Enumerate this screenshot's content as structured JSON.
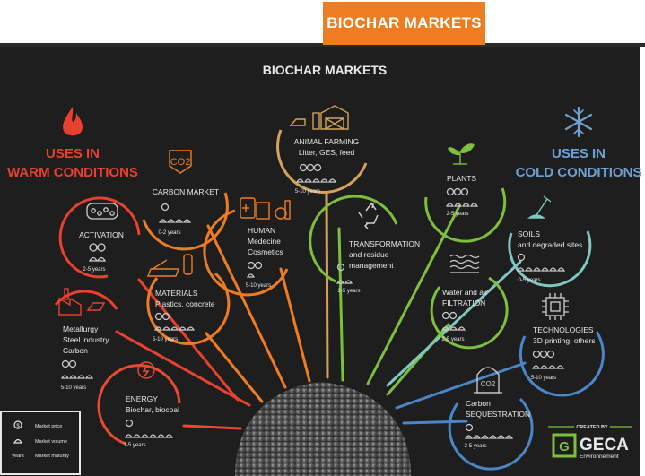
{
  "banner": {
    "title": "BIOCHAR MARKETS"
  },
  "diagram": {
    "title": "BIOCHAR MARKETS"
  },
  "warm": {
    "line1": "USES IN",
    "line2": "WARM CONDITIONS"
  },
  "cold": {
    "line1": "USES IN",
    "line2": "COLD CONDITIONS"
  },
  "colors": {
    "warm": "#e8412f",
    "cold": "#6fa0d4",
    "orange": "#ee7d22",
    "red": "#e84a33",
    "tan": "#d3a35d",
    "green": "#7fbf3e",
    "teal": "#7fc7c0",
    "blue": "#4a86c8",
    "background": "#1e1e1e"
  },
  "markets": {
    "activation": {
      "name": "ACTIVATION",
      "maturity": "2-5 years",
      "icon": "activation-pellets-icon"
    },
    "carbon_market": {
      "name": "CARBON MARKET",
      "maturity": "0-2 years",
      "icon": "co2-icon",
      "icon_label": "CO2"
    },
    "animal_farming": {
      "l1": "ANIMAL FARMING",
      "l2": "Litter, GES, feed",
      "maturity": "5-10 years",
      "icon": "farm-icon"
    },
    "human": {
      "l1": "HUMAN",
      "l2": "Medecine",
      "l3": "Cosmetics",
      "maturity": "5-10 years",
      "icon": "medicine-icon"
    },
    "materials": {
      "l1": "MATERIALS",
      "l2": "Plastics, concrete",
      "maturity": "5-10 years",
      "icon": "construction-icon"
    },
    "metallurgy": {
      "l1": "Metallurgy",
      "l2": "Steel industry",
      "l3": "Carbon",
      "maturity": "5-10 years",
      "icon": "factory-icon"
    },
    "energy": {
      "l1": "ENERGY",
      "l2": "Biochar, biocoal",
      "maturity": "1-5 years",
      "icon": "energy-icon"
    },
    "transformation": {
      "l1": "TRANSFORMATION",
      "l2": "and residue",
      "l3": "management",
      "maturity": "2-5 years",
      "icon": "recycle-icon"
    },
    "plants": {
      "name": "PLANTS",
      "maturity": "2-5 years",
      "icon": "sprout-icon"
    },
    "soils": {
      "l1": "SOILS",
      "l2": "and degraded sites",
      "maturity": "0-5 years",
      "icon": "shovel-icon"
    },
    "water": {
      "l1": "Water and air",
      "l2": "FILTRATION",
      "maturity": "2-5 years",
      "icon": "water-air-icon"
    },
    "technologies": {
      "l1": "TECHNOLOGIES",
      "l2": "3D printing, others",
      "maturity": "5-10 years",
      "icon": "chip-icon"
    },
    "sequestration": {
      "l1": "Carbon",
      "l2": "SEQUESTRATION",
      "maturity": "2-5 years",
      "icon": "co2-bell-jar-icon",
      "icon_label": "CO2"
    }
  },
  "legend": {
    "price": "Market price",
    "volume": "Market volume",
    "maturity": "Market maturity",
    "price_symbol": "$",
    "maturity_symbol": "years"
  },
  "credit": {
    "created_by": "CREATED BY",
    "brand": "GECA",
    "sub": "Environnement",
    "mark": "G"
  }
}
